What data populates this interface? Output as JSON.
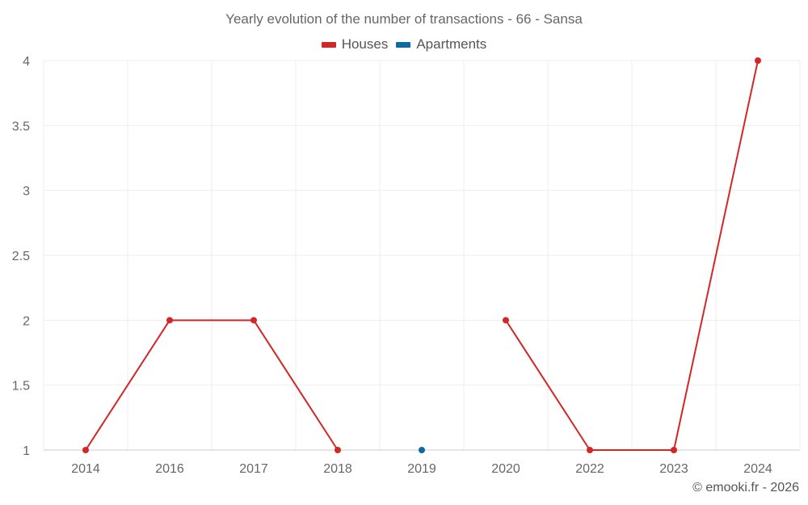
{
  "chart_data": {
    "type": "line",
    "title": "Yearly evolution of the number of transactions - 66 - Sansa",
    "categories": [
      "2014",
      "2016",
      "2017",
      "2018",
      "2019",
      "2020",
      "2022",
      "2023",
      "2024"
    ],
    "series": [
      {
        "name": "Houses",
        "color": "#d32626",
        "values": [
          1,
          2,
          2,
          1,
          null,
          2,
          1,
          1,
          4
        ]
      },
      {
        "name": "Apartments",
        "color": "#0e6aa0",
        "values": [
          null,
          null,
          null,
          null,
          1,
          null,
          null,
          null,
          null
        ]
      }
    ],
    "yticks": [
      "1",
      "1.5",
      "2",
      "2.5",
      "3",
      "3.5",
      "4"
    ],
    "ylim": [
      1,
      4
    ],
    "xlabel": "",
    "ylabel": "",
    "legend_position": "top-center",
    "grid": true
  },
  "credit": "© emooki.fr - 2026"
}
